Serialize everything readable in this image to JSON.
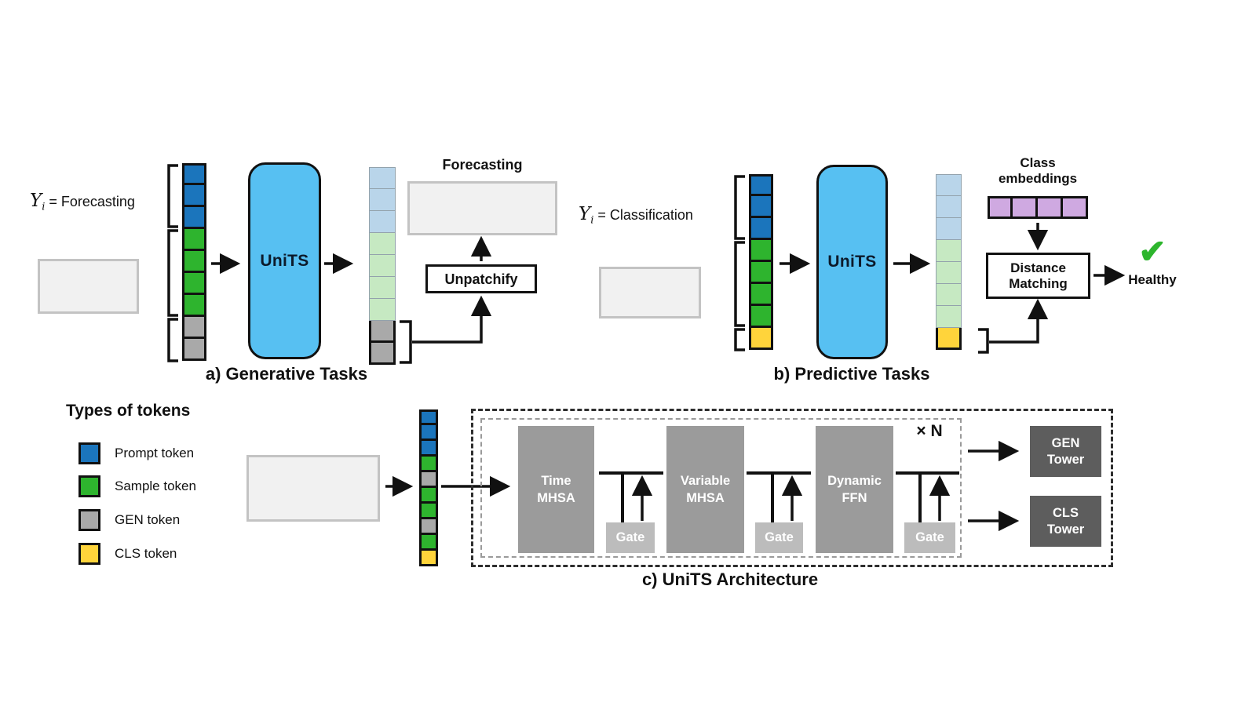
{
  "colors": {
    "prompt": "#1b75bc",
    "sample": "#2eb42e",
    "gen": "#a9a9a9",
    "cls": "#ffd43b",
    "prompt-pale": "#b9d5ea",
    "sample-pale": "#c6e9c2",
    "embed": "#cfa9e1",
    "units_fill": "#57c0f2",
    "check_green": "#2db52d",
    "forecast_dotted_green": "#3fbf3f"
  },
  "token_columns": {
    "a_input": [
      "prompt",
      "prompt",
      "prompt",
      "sample",
      "sample",
      "sample",
      "sample",
      "gen",
      "gen"
    ],
    "a_output": [
      "prompt-pale",
      "prompt-pale",
      "prompt-pale",
      "sample-pale",
      "sample-pale",
      "sample-pale",
      "sample-pale",
      "gen",
      "gen"
    ],
    "b_input": [
      "prompt",
      "prompt",
      "prompt",
      "sample",
      "sample",
      "sample",
      "sample",
      "cls"
    ],
    "b_output": [
      "prompt-pale",
      "prompt-pale",
      "prompt-pale",
      "sample-pale",
      "sample-pale",
      "sample-pale",
      "sample-pale",
      "cls"
    ],
    "c_mixed": [
      "prompt",
      "prompt",
      "prompt",
      "sample",
      "gen",
      "sample",
      "sample",
      "gen",
      "sample",
      "cls"
    ],
    "class_embeddings": [
      "embed",
      "embed",
      "embed",
      "embed"
    ]
  },
  "panel_a": {
    "label_y": "Y",
    "label_sub": "i",
    "label_task": " = Forecasting",
    "units_label": "UniTS",
    "forecast_title": "Forecasting",
    "unpatchify_label": "Unpatchify",
    "caption": "a) Generative Tasks"
  },
  "panel_b": {
    "label_y": "Y",
    "label_sub": "i",
    "label_task": " = Classification",
    "units_label": "UniTS",
    "class_embeddings_line1": "Class",
    "class_embeddings_line2": "embeddings",
    "distance_line1": "Distance",
    "distance_line2": "Matching",
    "check_glyph": "✔",
    "result": "Healthy",
    "caption": "b) Predictive Tasks"
  },
  "legend": {
    "title": "Types of tokens",
    "items": [
      {
        "type": "prompt",
        "label": "Prompt token"
      },
      {
        "type": "sample",
        "label": "Sample token"
      },
      {
        "type": "gen",
        "label": "GEN token"
      },
      {
        "type": "cls",
        "label": "CLS token"
      }
    ]
  },
  "architecture": {
    "blocks": [
      {
        "line1": "Time",
        "line2": "MHSA"
      },
      {
        "line1": "Variable",
        "line2": "MHSA"
      },
      {
        "line1": "Dynamic",
        "line2": "FFN"
      }
    ],
    "gate_label": "Gate",
    "repeat": "× N",
    "towers": [
      {
        "line1": "GEN",
        "line2": "Tower"
      },
      {
        "line1": "CLS",
        "line2": "Tower"
      }
    ],
    "caption": "c) UniTS Architecture"
  }
}
